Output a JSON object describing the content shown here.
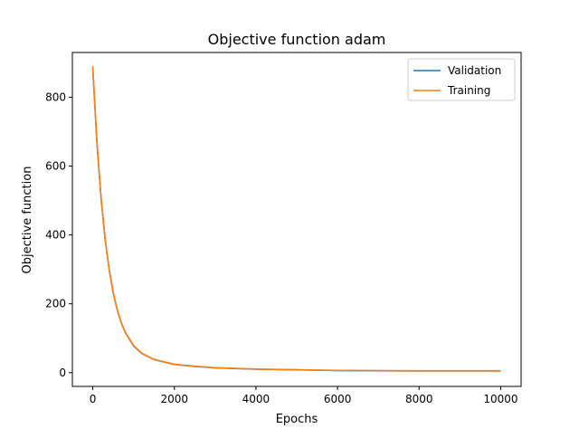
{
  "chart_data": {
    "type": "line",
    "title": "Objective function adam",
    "xlabel": "Epochs",
    "ylabel": "Objective function",
    "xlim": [
      -500,
      10500
    ],
    "ylim": [
      -40,
      930
    ],
    "xticks": [
      0,
      2000,
      4000,
      6000,
      8000,
      10000
    ],
    "xtick_labels": [
      "0",
      "2000",
      "4000",
      "6000",
      "8000",
      "10000"
    ],
    "yticks": [
      0,
      200,
      400,
      600,
      800
    ],
    "ytick_labels": [
      "0",
      "200",
      "400",
      "600",
      "800"
    ],
    "grid": false,
    "legend_position": "top-right",
    "series": [
      {
        "name": "Validation",
        "color": "#1f77b4",
        "x": [
          0,
          100,
          200,
          300,
          400,
          500,
          600,
          700,
          800,
          1000,
          1200,
          1500,
          2000,
          2500,
          3000,
          4000,
          5000,
          6000,
          7000,
          8000,
          9000,
          10000
        ],
        "y": [
          885,
          670,
          510,
          390,
          300,
          232,
          182,
          144,
          116,
          78,
          56,
          38,
          24,
          18,
          14,
          10,
          8,
          6,
          5.5,
          5,
          5,
          5
        ]
      },
      {
        "name": "Training",
        "color": "#ff7f0e",
        "x": [
          0,
          100,
          200,
          300,
          400,
          500,
          600,
          700,
          800,
          1000,
          1200,
          1500,
          2000,
          2500,
          3000,
          4000,
          5000,
          6000,
          7000,
          8000,
          9000,
          10000
        ],
        "y": [
          890,
          672,
          512,
          391,
          301,
          233,
          183,
          145,
          117,
          79,
          56.5,
          38.5,
          24.5,
          18.5,
          14.5,
          10.5,
          8.5,
          6.5,
          6,
          5.5,
          5.5,
          5.5
        ]
      }
    ]
  }
}
